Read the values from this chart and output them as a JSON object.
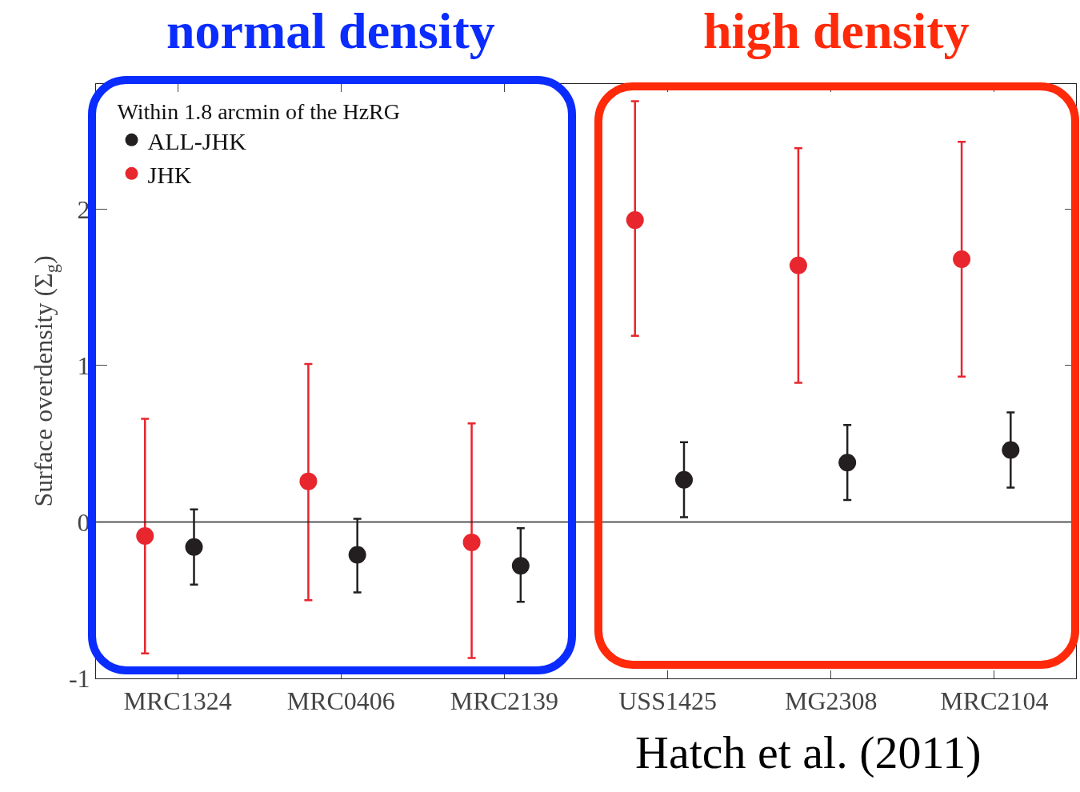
{
  "chart_data": {
    "type": "scatter",
    "ylabel": "Surface overdensity (Σ$_{g}$)",
    "legend_title": "Within 1.8 arcmin of the HzRG",
    "categories": [
      "MRC1324",
      "MRC0406",
      "MRC2139",
      "USS1425",
      "MG2308",
      "MRC2104"
    ],
    "series": [
      {
        "name": "ALL-JHK",
        "color": "#231f20",
        "values": [
          -0.16,
          -0.21,
          -0.28,
          0.27,
          0.38,
          0.46
        ],
        "errors": [
          [
            -0.4,
            0.08
          ],
          [
            -0.45,
            0.02
          ],
          [
            -0.51,
            -0.04
          ],
          [
            0.03,
            0.51
          ],
          [
            0.14,
            0.62
          ],
          [
            0.22,
            0.7
          ]
        ]
      },
      {
        "name": "JHK",
        "color": "#e8262e",
        "values": [
          -0.09,
          0.26,
          -0.13,
          1.93,
          1.64,
          1.68
        ],
        "errors": [
          [
            -0.84,
            0.66
          ],
          [
            -0.5,
            1.01
          ],
          [
            -0.87,
            0.63
          ],
          [
            1.19,
            2.69
          ],
          [
            0.89,
            2.39
          ],
          [
            0.93,
            2.43
          ]
        ]
      }
    ],
    "ylim": [
      -1,
      2.8
    ],
    "yticks": [
      -1,
      0,
      1,
      2
    ],
    "grid": false,
    "legend": "top left",
    "marker": "circle",
    "ref_lines": [
      {
        "axis": "y",
        "value": 0
      }
    ],
    "annotations": [
      "normal density",
      "high density",
      "Hatch et al. (2011)"
    ]
  }
}
